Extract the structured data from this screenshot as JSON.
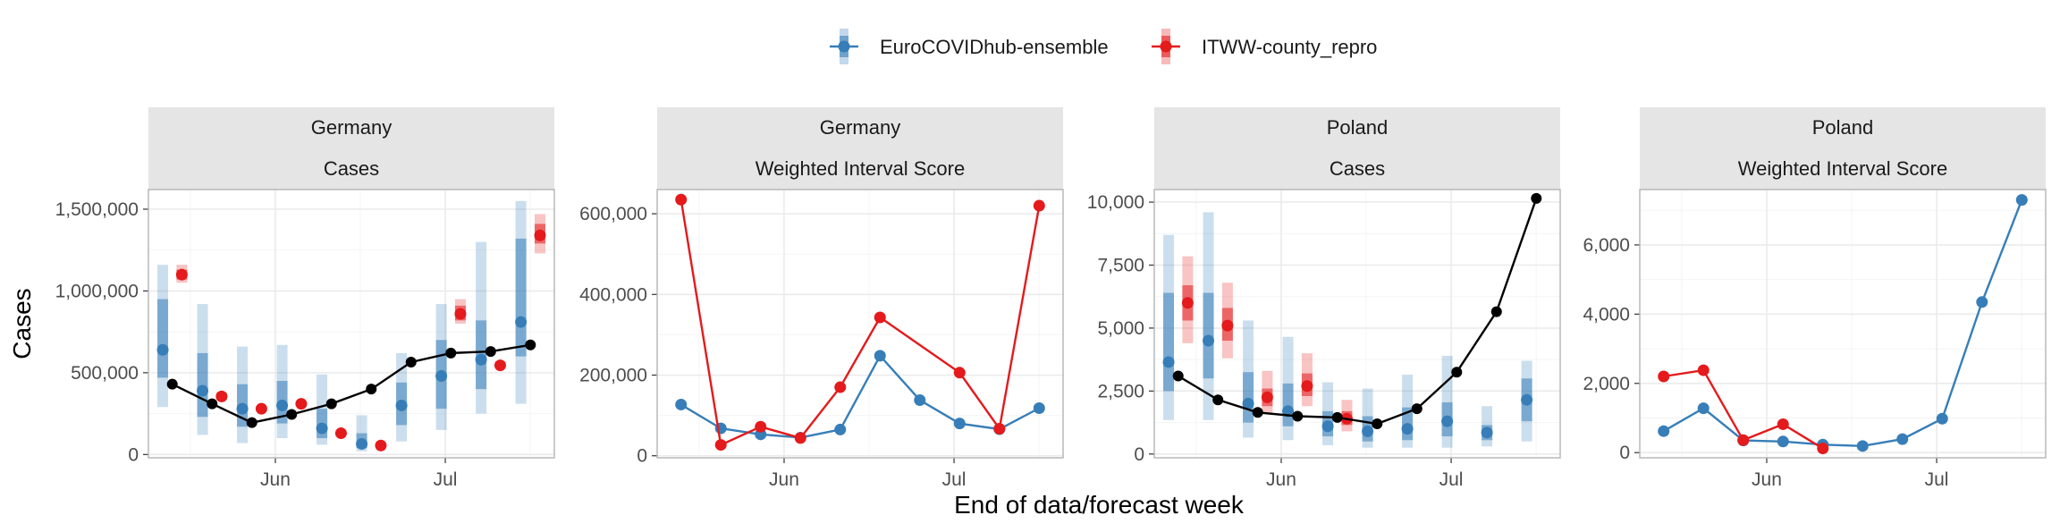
{
  "chart_data": {
    "type": "line",
    "xlabel": "End of data/forecast week",
    "ylabel": "Cases",
    "legend": {
      "placement": "top",
      "entries": [
        {
          "name": "EuroCOVIDhub-ensemble",
          "color": "#377eb8"
        },
        {
          "name": "ITWW-county_repro",
          "color": "#e41a1c"
        }
      ]
    },
    "observed_color": "#000000",
    "x_ticks": [
      {
        "label": "Jun",
        "value": 2.59
      },
      {
        "label": "Jul",
        "value": 6.86
      }
    ],
    "panels": [
      {
        "strip_top": "Germany",
        "strip_bottom": "Cases",
        "kind": "cases",
        "xlim": [
          -0.6,
          9.6
        ],
        "ylim": [
          -20000,
          1620000
        ],
        "y_ticks": [
          {
            "value": 0,
            "label": "0"
          },
          {
            "value": 500000,
            "label": "500,000"
          },
          {
            "value": 1000000,
            "label": "1,000,000"
          },
          {
            "value": 1500000,
            "label": "1,500,000"
          }
        ],
        "observed": [
          {
            "x": 0,
            "y": 430000
          },
          {
            "x": 1,
            "y": 310000
          },
          {
            "x": 2,
            "y": 195000
          },
          {
            "x": 3,
            "y": 245000
          },
          {
            "x": 4,
            "y": 310000
          },
          {
            "x": 5,
            "y": 400000
          },
          {
            "x": 6,
            "y": 565000
          },
          {
            "x": 7,
            "y": 620000
          },
          {
            "x": 8,
            "y": 630000
          },
          {
            "x": 9,
            "y": 670000
          }
        ],
        "forecasts": [
          {
            "model": "EuroCOVIDhub-ensemble",
            "points": [
              {
                "x": 0,
                "median": 640000,
                "lo50": 470000,
                "hi50": 950000,
                "lo90": 290000,
                "hi90": 1160000
              },
              {
                "x": 1,
                "median": 390000,
                "lo50": 230000,
                "hi50": 620000,
                "lo90": 120000,
                "hi90": 920000
              },
              {
                "x": 2,
                "median": 280000,
                "lo50": 170000,
                "hi50": 430000,
                "lo90": 70000,
                "hi90": 660000
              },
              {
                "x": 3,
                "median": 300000,
                "lo50": 190000,
                "hi50": 450000,
                "lo90": 100000,
                "hi90": 670000
              },
              {
                "x": 4,
                "median": 160000,
                "lo50": 100000,
                "hi50": 280000,
                "lo90": 60000,
                "hi90": 490000
              },
              {
                "x": 5,
                "median": 65000,
                "lo50": 40000,
                "hi50": 130000,
                "lo90": 20000,
                "hi90": 240000
              },
              {
                "x": 6,
                "median": 300000,
                "lo50": 180000,
                "hi50": 440000,
                "lo90": 80000,
                "hi90": 620000
              },
              {
                "x": 7,
                "median": 480000,
                "lo50": 280000,
                "hi50": 700000,
                "lo90": 150000,
                "hi90": 920000
              },
              {
                "x": 8,
                "median": 580000,
                "lo50": 400000,
                "hi50": 820000,
                "lo90": 250000,
                "hi90": 1300000
              },
              {
                "x": 9,
                "median": 810000,
                "lo50": 600000,
                "hi50": 1320000,
                "lo90": 310000,
                "hi90": 1550000
              }
            ]
          },
          {
            "model": "ITWW-county_repro",
            "points": [
              {
                "x": 0,
                "median": 1100000,
                "lo50": 1070000,
                "hi50": 1130000,
                "lo90": 1050000,
                "hi90": 1160000
              },
              {
                "x": 1,
                "median": 355000,
                "lo50": 340000,
                "hi50": 370000,
                "lo90": 330000,
                "hi90": 380000
              },
              {
                "x": 2,
                "median": 280000,
                "lo50": 270000,
                "hi50": 290000,
                "lo90": 265000,
                "hi90": 295000
              },
              {
                "x": 3,
                "median": 310000,
                "lo50": 300000,
                "hi50": 320000,
                "lo90": 295000,
                "hi90": 325000
              },
              {
                "x": 4,
                "median": 130000,
                "lo50": 125000,
                "hi50": 135000,
                "lo90": 120000,
                "hi90": 140000
              },
              {
                "x": 5,
                "median": 55000,
                "lo50": 52000,
                "hi50": 58000,
                "lo90": 50000,
                "hi90": 60000
              },
              {
                "x": 7,
                "median": 860000,
                "lo50": 820000,
                "hi50": 910000,
                "lo90": 800000,
                "hi90": 950000
              },
              {
                "x": 8,
                "median": 545000,
                "lo50": 535000,
                "hi50": 560000,
                "lo90": 525000,
                "hi90": 570000
              },
              {
                "x": 9,
                "median": 1340000,
                "lo50": 1290000,
                "hi50": 1410000,
                "lo90": 1230000,
                "hi90": 1470000
              }
            ]
          }
        ]
      },
      {
        "strip_top": "Germany",
        "strip_bottom": "Weighted Interval Score",
        "kind": "score",
        "xlim": [
          -0.6,
          9.6
        ],
        "ylim": [
          -5000,
          660000
        ],
        "y_ticks": [
          {
            "value": 0,
            "label": "0"
          },
          {
            "value": 200000,
            "label": "200,000"
          },
          {
            "value": 400000,
            "label": "400,000"
          },
          {
            "value": 600000,
            "label": "600,000"
          }
        ],
        "series": [
          {
            "name": "EuroCOVIDhub-ensemble",
            "points": [
              {
                "x": 0,
                "y": 127000
              },
              {
                "x": 1,
                "y": 68000
              },
              {
                "x": 2,
                "y": 53000
              },
              {
                "x": 3,
                "y": 45000
              },
              {
                "x": 4,
                "y": 65000
              },
              {
                "x": 5,
                "y": 248000
              },
              {
                "x": 6,
                "y": 138000
              },
              {
                "x": 7,
                "y": 80000
              },
              {
                "x": 8,
                "y": 66000
              },
              {
                "x": 9,
                "y": 118000
              }
            ]
          },
          {
            "name": "ITWW-county_repro",
            "points": [
              {
                "x": 0,
                "y": 635000
              },
              {
                "x": 1,
                "y": 27000
              },
              {
                "x": 2,
                "y": 72000
              },
              {
                "x": 3,
                "y": 44000
              },
              {
                "x": 4,
                "y": 170000
              },
              {
                "x": 5,
                "y": 343000
              },
              {
                "x": 7,
                "y": 206000
              },
              {
                "x": 8,
                "y": 67000
              },
              {
                "x": 9,
                "y": 620000
              }
            ]
          }
        ]
      },
      {
        "strip_top": "Poland",
        "strip_bottom": "Cases",
        "kind": "cases",
        "xlim": [
          -0.6,
          9.6
        ],
        "ylim": [
          -150,
          10500
        ],
        "y_ticks": [
          {
            "value": 0,
            "label": "0"
          },
          {
            "value": 2500,
            "label": "2,500"
          },
          {
            "value": 5000,
            "label": "5,000"
          },
          {
            "value": 7500,
            "label": "7,500"
          },
          {
            "value": 10000,
            "label": "10,000"
          }
        ],
        "observed": [
          {
            "x": 0,
            "y": 3100
          },
          {
            "x": 1,
            "y": 2150
          },
          {
            "x": 2,
            "y": 1650
          },
          {
            "x": 3,
            "y": 1500
          },
          {
            "x": 4,
            "y": 1450
          },
          {
            "x": 5,
            "y": 1200
          },
          {
            "x": 6,
            "y": 1800
          },
          {
            "x": 7,
            "y": 3250
          },
          {
            "x": 8,
            "y": 5650
          },
          {
            "x": 9,
            "y": 10150
          }
        ],
        "forecasts": [
          {
            "model": "EuroCOVIDhub-ensemble",
            "points": [
              {
                "x": 0,
                "median": 3650,
                "lo50": 2500,
                "hi50": 6400,
                "lo90": 1350,
                "hi90": 8700
              },
              {
                "x": 1,
                "median": 4500,
                "lo50": 3000,
                "hi50": 6400,
                "lo90": 1350,
                "hi90": 9600
              },
              {
                "x": 2,
                "median": 2000,
                "lo50": 1250,
                "hi50": 3250,
                "lo90": 650,
                "hi90": 5300
              },
              {
                "x": 3,
                "median": 1700,
                "lo50": 1100,
                "hi50": 2800,
                "lo90": 550,
                "hi90": 4650
              },
              {
                "x": 4,
                "median": 1100,
                "lo50": 700,
                "hi50": 1700,
                "lo90": 350,
                "hi90": 2850
              },
              {
                "x": 5,
                "median": 900,
                "lo50": 500,
                "hi50": 1500,
                "lo90": 250,
                "hi90": 2600
              },
              {
                "x": 6,
                "median": 1000,
                "lo50": 550,
                "hi50": 1850,
                "lo90": 250,
                "hi90": 3150
              },
              {
                "x": 7,
                "median": 1300,
                "lo50": 700,
                "hi50": 2050,
                "lo90": 250,
                "hi90": 3900
              },
              {
                "x": 8,
                "median": 850,
                "lo50": 550,
                "hi50": 1150,
                "lo90": 300,
                "hi90": 1900
              },
              {
                "x": 9,
                "median": 2150,
                "lo50": 1300,
                "hi50": 3000,
                "lo90": 500,
                "hi90": 3700
              }
            ]
          },
          {
            "model": "ITWW-county_repro",
            "points": [
              {
                "x": 0,
                "median": 6000,
                "lo50": 5300,
                "hi50": 6700,
                "lo90": 4400,
                "hi90": 7850
              },
              {
                "x": 1,
                "median": 5100,
                "lo50": 4500,
                "hi50": 5800,
                "lo90": 3800,
                "hi90": 6800
              },
              {
                "x": 2,
                "median": 2250,
                "lo50": 1900,
                "hi50": 2600,
                "lo90": 1600,
                "hi90": 3300
              },
              {
                "x": 3,
                "median": 2700,
                "lo50": 2300,
                "hi50": 3200,
                "lo90": 1900,
                "hi90": 4000
              },
              {
                "x": 4,
                "median": 1400,
                "lo50": 1150,
                "hi50": 1700,
                "lo90": 900,
                "hi90": 2150
              }
            ]
          }
        ]
      },
      {
        "strip_top": "Poland",
        "strip_bottom": "Weighted Interval Score",
        "kind": "score",
        "xlim": [
          -0.6,
          9.6
        ],
        "ylim": [
          -150,
          7600
        ],
        "y_ticks": [
          {
            "value": 0,
            "label": "0"
          },
          {
            "value": 2000,
            "label": "2,000"
          },
          {
            "value": 4000,
            "label": "4,000"
          },
          {
            "value": 6000,
            "label": "6,000"
          }
        ],
        "series": [
          {
            "name": "EuroCOVIDhub-ensemble",
            "points": [
              {
                "x": 0,
                "y": 620
              },
              {
                "x": 1,
                "y": 1280
              },
              {
                "x": 2,
                "y": 350
              },
              {
                "x": 3,
                "y": 320
              },
              {
                "x": 4,
                "y": 230
              },
              {
                "x": 5,
                "y": 190
              },
              {
                "x": 6,
                "y": 390
              },
              {
                "x": 7,
                "y": 980
              },
              {
                "x": 8,
                "y": 4350
              },
              {
                "x": 9,
                "y": 7300
              }
            ]
          },
          {
            "name": "ITWW-county_repro",
            "points": [
              {
                "x": 0,
                "y": 2200
              },
              {
                "x": 1,
                "y": 2380
              },
              {
                "x": 2,
                "y": 360
              },
              {
                "x": 3,
                "y": 820
              },
              {
                "x": 4,
                "y": 120
              }
            ]
          }
        ]
      }
    ]
  }
}
